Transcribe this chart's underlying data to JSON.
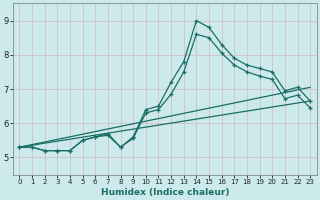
{
  "title": "",
  "xlabel": "Humidex (Indice chaleur)",
  "background_color": "#cce9eb",
  "grid_color": "#d4b8c0",
  "line_color": "#1a6e65",
  "xlim": [
    -0.5,
    23.5
  ],
  "ylim": [
    4.5,
    9.5
  ],
  "yticks": [
    5,
    6,
    7,
    8,
    9
  ],
  "xticks": [
    0,
    1,
    2,
    3,
    4,
    5,
    6,
    7,
    8,
    9,
    10,
    11,
    12,
    13,
    14,
    15,
    16,
    17,
    18,
    19,
    20,
    21,
    22,
    23
  ],
  "series": [
    {
      "x": [
        0,
        1,
        2,
        3,
        4,
        5,
        6,
        7,
        8,
        9,
        10,
        11,
        12,
        13,
        14,
        15,
        16,
        17,
        18,
        19,
        20,
        21,
        22,
        23
      ],
      "y": [
        5.3,
        5.3,
        5.2,
        5.2,
        5.2,
        5.5,
        5.6,
        5.7,
        5.3,
        5.6,
        6.4,
        6.5,
        7.2,
        7.8,
        9.0,
        8.8,
        8.3,
        7.9,
        7.7,
        7.6,
        7.5,
        6.95,
        7.05,
        6.65
      ],
      "marker": true
    },
    {
      "x": [
        0,
        1,
        2,
        3,
        4,
        5,
        6,
        7,
        8,
        9,
        10,
        11,
        12,
        13,
        14,
        15,
        16,
        17,
        18,
        19,
        20,
        21,
        22,
        23
      ],
      "y": [
        5.3,
        5.3,
        5.2,
        5.2,
        5.2,
        5.5,
        5.6,
        5.65,
        5.3,
        5.56,
        6.3,
        6.4,
        6.85,
        7.5,
        8.6,
        8.5,
        8.05,
        7.7,
        7.5,
        7.38,
        7.28,
        6.72,
        6.82,
        6.45
      ],
      "marker": true
    },
    {
      "x": [
        0,
        23
      ],
      "y": [
        5.3,
        6.65
      ],
      "marker": false
    },
    {
      "x": [
        0,
        23
      ],
      "y": [
        5.3,
        7.05
      ],
      "marker": false
    }
  ],
  "tick_fontsize_x": 5.0,
  "tick_fontsize_y": 6.0,
  "xlabel_fontsize": 6.5,
  "xlabel_fontweight": "bold",
  "linewidth": 0.9,
  "markersize": 3.0
}
